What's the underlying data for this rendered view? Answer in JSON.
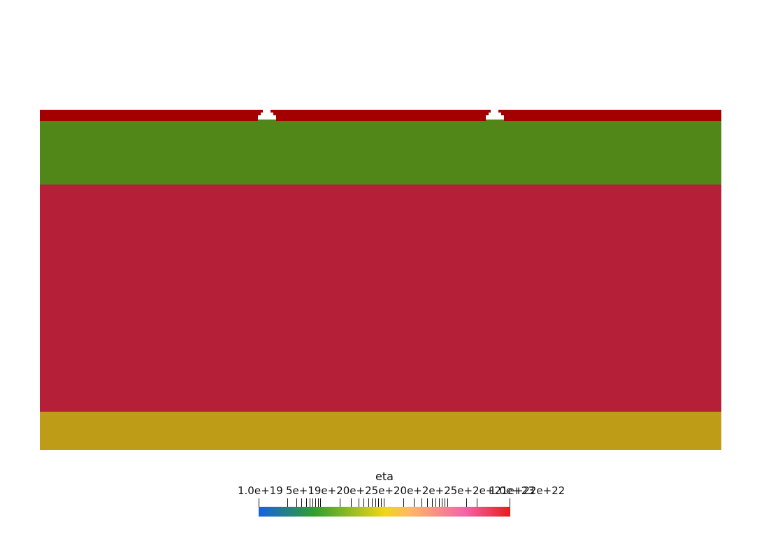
{
  "colors": {
    "background": "#ffffff",
    "layer_top": "#a30000",
    "layer_upper": "#508718",
    "layer_middle": "#b51f38",
    "layer_bottom": "#bf9c18"
  },
  "colorbar": {
    "title": "eta",
    "range": [
      1e+19,
      1e+23
    ],
    "scale": "log",
    "labels": {
      "min": "1.0e+19",
      "max": "1.0e+23",
      "dense": "5e+19e+20e+25e+20e+2e+25e+2e+21e+22e+22"
    },
    "gradient_stops": [
      "#1760e6",
      "#2fa02c",
      "#f1d616",
      "#ffb865",
      "#f464a8",
      "#e61c1c"
    ]
  }
}
